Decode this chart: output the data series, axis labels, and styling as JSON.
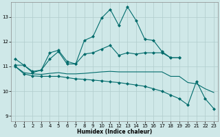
{
  "xlabel": "Humidex (Indice chaleur)",
  "xlim": [
    -0.5,
    23.5
  ],
  "ylim": [
    8.8,
    13.6
  ],
  "yticks": [
    9,
    10,
    11,
    12,
    13
  ],
  "xticks": [
    0,
    1,
    2,
    3,
    4,
    5,
    6,
    7,
    8,
    9,
    10,
    11,
    12,
    13,
    14,
    15,
    16,
    17,
    18,
    19,
    20,
    21,
    22,
    23
  ],
  "bg_color": "#cfe8e8",
  "grid_color_major": "#b0cccc",
  "grid_color_minor": "#b0cccc",
  "line_color": "#006b6b",
  "lines": [
    {
      "x": [
        0,
        1,
        2,
        3,
        4,
        5,
        6,
        7,
        8,
        9,
        10,
        11,
        12,
        13,
        14,
        15,
        16,
        17,
        18,
        19
      ],
      "y": [
        11.3,
        11.05,
        10.75,
        10.85,
        11.55,
        11.65,
        11.2,
        11.1,
        12.05,
        12.2,
        12.95,
        13.3,
        12.65,
        13.4,
        12.85,
        12.1,
        12.05,
        11.6,
        11.35,
        11.35
      ],
      "marker": "D",
      "markersize": 2.0
    },
    {
      "x": [
        0,
        1,
        2,
        3,
        4,
        5,
        6,
        7,
        8,
        9,
        10,
        11,
        12,
        13,
        14,
        15,
        16,
        17,
        18,
        19
      ],
      "y": [
        11.05,
        11.05,
        10.8,
        10.85,
        11.3,
        11.6,
        11.1,
        11.1,
        11.5,
        11.55,
        11.7,
        11.85,
        11.45,
        11.55,
        11.5,
        11.55,
        11.55,
        11.55,
        11.35,
        11.35
      ],
      "marker": "D",
      "markersize": 2.0
    },
    {
      "x": [
        0,
        1,
        2,
        3,
        4,
        5,
        6,
        7,
        8,
        9,
        10,
        11,
        12,
        13,
        14,
        15,
        16,
        17,
        18,
        19,
        20,
        21,
        22,
        23
      ],
      "y": [
        11.0,
        10.75,
        10.7,
        10.68,
        10.72,
        10.75,
        10.7,
        10.7,
        10.72,
        10.75,
        10.78,
        10.8,
        10.78,
        10.78,
        10.78,
        10.78,
        10.78,
        10.78,
        10.6,
        10.6,
        10.35,
        10.3,
        10.1,
        9.95
      ],
      "marker": null,
      "markersize": 0
    },
    {
      "x": [
        0,
        1,
        2,
        3,
        4,
        5,
        6,
        7,
        8,
        9,
        10,
        11,
        12,
        13,
        14,
        15,
        16,
        17,
        18,
        19,
        20,
        21,
        22,
        23
      ],
      "y": [
        11.0,
        10.7,
        10.62,
        10.6,
        10.6,
        10.6,
        10.55,
        10.5,
        10.48,
        10.45,
        10.42,
        10.38,
        10.35,
        10.3,
        10.25,
        10.2,
        10.1,
        10.0,
        9.85,
        9.7,
        9.45,
        10.4,
        9.7,
        9.3
      ],
      "marker": "D",
      "markersize": 2.0
    }
  ]
}
